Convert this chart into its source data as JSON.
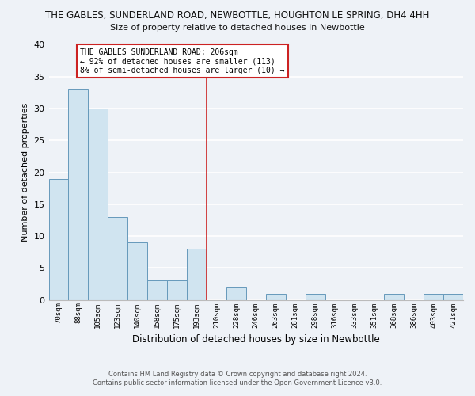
{
  "title": "THE GABLES, SUNDERLAND ROAD, NEWBOTTLE, HOUGHTON LE SPRING, DH4 4HH",
  "subtitle": "Size of property relative to detached houses in Newbottle",
  "xlabel": "Distribution of detached houses by size in Newbottle",
  "ylabel": "Number of detached properties",
  "bar_labels": [
    "70sqm",
    "88sqm",
    "105sqm",
    "123sqm",
    "140sqm",
    "158sqm",
    "175sqm",
    "193sqm",
    "210sqm",
    "228sqm",
    "246sqm",
    "263sqm",
    "281sqm",
    "298sqm",
    "316sqm",
    "333sqm",
    "351sqm",
    "368sqm",
    "386sqm",
    "403sqm",
    "421sqm"
  ],
  "bar_values": [
    19,
    33,
    30,
    13,
    9,
    3,
    3,
    8,
    0,
    2,
    0,
    1,
    0,
    1,
    0,
    0,
    0,
    1,
    0,
    1,
    1
  ],
  "bar_color": "#d0e4f0",
  "bar_edge_color": "#6699bb",
  "vline_color": "#cc2222",
  "annotation_title": "THE GABLES SUNDERLAND ROAD: 206sqm",
  "annotation_line1": "← 92% of detached houses are smaller (113)",
  "annotation_line2": "8% of semi-detached houses are larger (10) →",
  "annotation_box_color": "#ffffff",
  "annotation_box_edge": "#cc2222",
  "ylim": [
    0,
    40
  ],
  "yticks": [
    0,
    5,
    10,
    15,
    20,
    25,
    30,
    35,
    40
  ],
  "background_color": "#eef2f7",
  "grid_color": "#ffffff",
  "footer1": "Contains HM Land Registry data © Crown copyright and database right 2024.",
  "footer2": "Contains public sector information licensed under the Open Government Licence v3.0."
}
